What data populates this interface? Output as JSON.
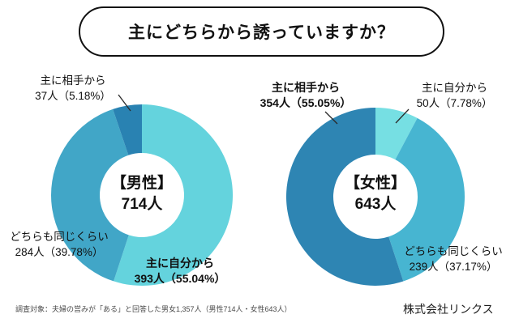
{
  "title": "主にどちらから誘っていますか？",
  "footer": {
    "note": "調査対象：夫婦の営みが「ある」と回答した男女1,357人（男性714人・女性643人）",
    "company": "株式会社リンクス"
  },
  "chart_data": [
    {
      "type": "donut",
      "group": "【男性】",
      "total": 714,
      "total_label": "714人",
      "segments": [
        {
          "label": "主に自分から",
          "value": 393,
          "pct": "55.04%",
          "color": "#64D3DD",
          "emphasis": true
        },
        {
          "label": "どちらも同じくらい",
          "value": 284,
          "pct": "39.78%",
          "color": "#41A6C7",
          "emphasis": false
        },
        {
          "label": "主に相手から",
          "value": 37,
          "pct": "5.18%",
          "color": "#2982B2",
          "emphasis": false
        }
      ]
    },
    {
      "type": "donut",
      "group": "【女性】",
      "total": 643,
      "total_label": "643人",
      "segments": [
        {
          "label": "主に自分から",
          "value": 50,
          "pct": "7.78%",
          "color": "#76DFE3",
          "emphasis": false
        },
        {
          "label": "どちらも同じくらい",
          "value": 239,
          "pct": "37.17%",
          "color": "#47B5D1",
          "emphasis": false
        },
        {
          "label": "主に相手から",
          "value": 354,
          "pct": "55.05%",
          "color": "#2E85B3",
          "emphasis": true
        }
      ]
    }
  ]
}
